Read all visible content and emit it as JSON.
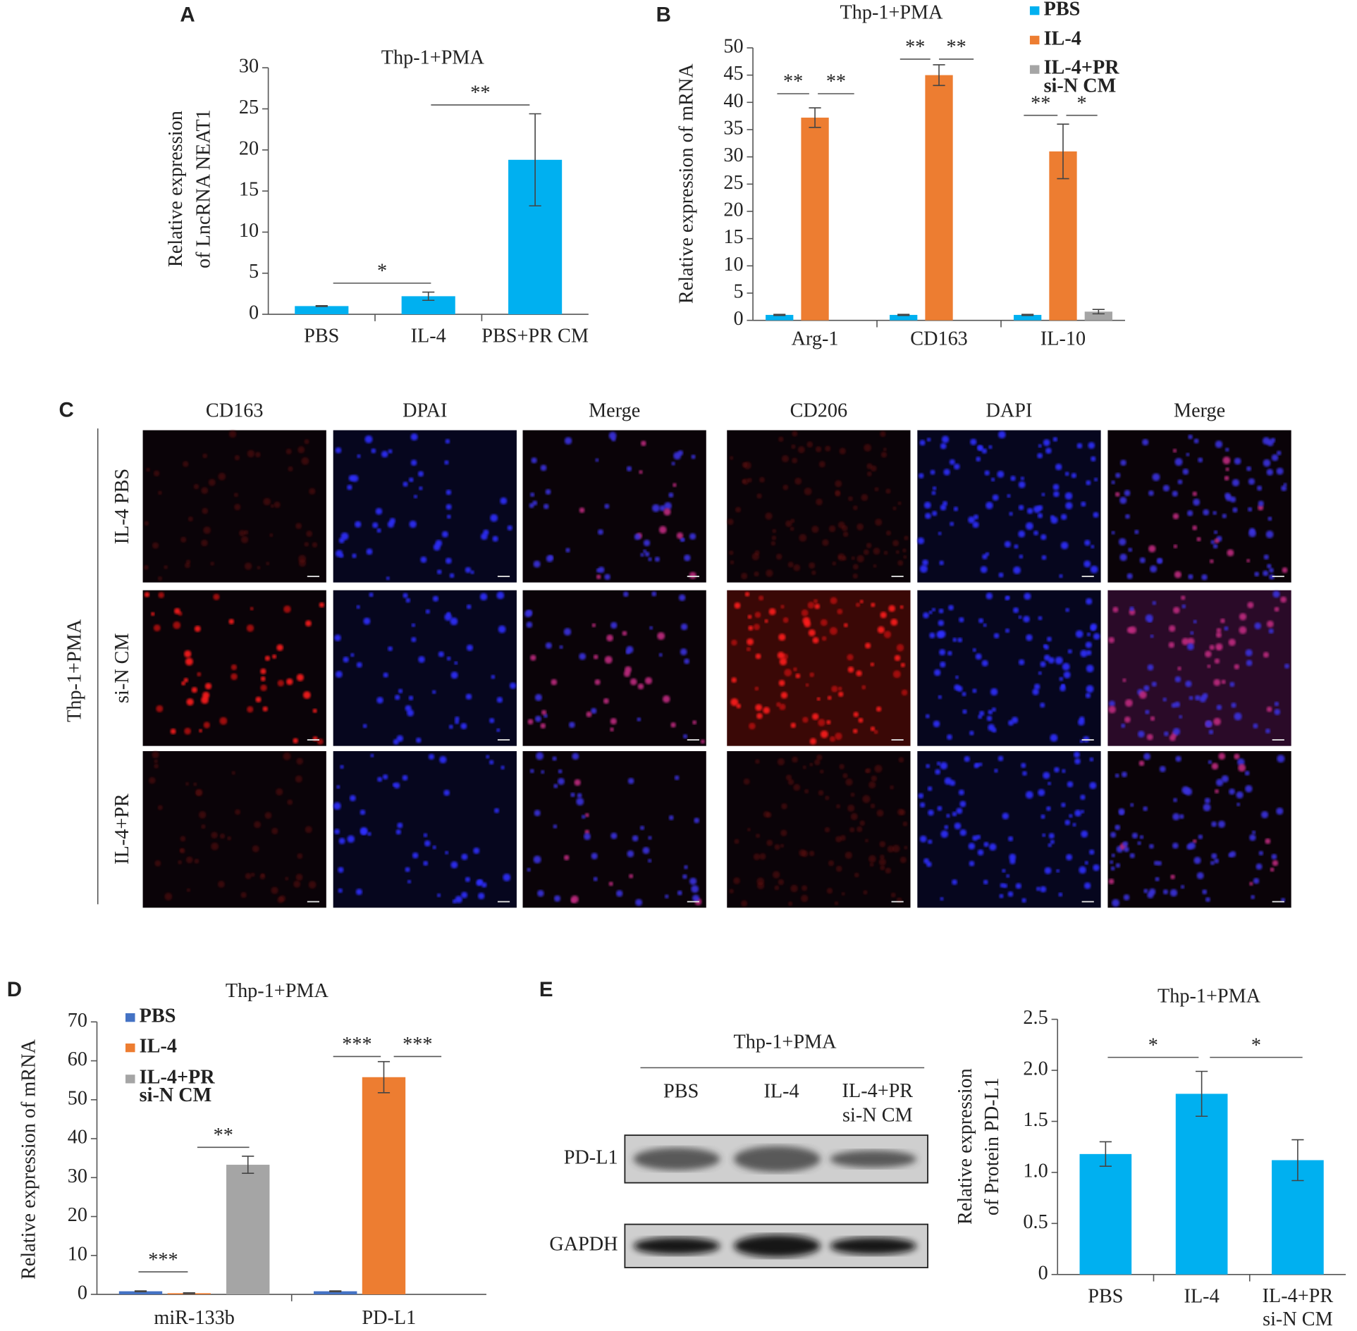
{
  "chart_data": [
    {
      "type": "bar",
      "title": "Thp-1+PMA",
      "ylabel": [
        "Relative expression",
        "of LncRNA NEAT1"
      ],
      "categories": [
        "PBS",
        "IL-4",
        "PBS+PR CM"
      ],
      "values": [
        1.0,
        2.2,
        18.8
      ],
      "errors": [
        0.05,
        0.5,
        5.6
      ],
      "color": "#00b0f0",
      "ylim": [
        0,
        30
      ],
      "yticks": [
        0,
        5,
        10,
        15,
        20,
        25,
        30
      ],
      "annotations": [
        "*",
        "**"
      ]
    },
    {
      "type": "bar",
      "title": "Thp-1+PMA",
      "ylabel": "Relative expression of mRNA",
      "categories": [
        "Arg-1",
        "CD163",
        "IL-10"
      ],
      "series": [
        {
          "name": "PBS",
          "color": "#00b0f0",
          "values": [
            1.0,
            1.0,
            1.0
          ],
          "errors": [
            0.1,
            0.1,
            0.1
          ]
        },
        {
          "name": "IL-4",
          "color": "#ed7d31",
          "values": [
            37.2,
            45.0,
            31.0
          ],
          "errors": [
            1.8,
            1.9,
            5.0
          ]
        },
        {
          "name": "IL-4+PR\nsi-N CM",
          "color": "#a5a5a5",
          "values": [
            null,
            null,
            1.6
          ],
          "errors": [
            null,
            null,
            0.4
          ]
        }
      ],
      "ylim": [
        0,
        50
      ],
      "yticks": [
        0,
        5,
        10,
        15,
        20,
        25,
        30,
        35,
        40,
        45,
        50
      ],
      "annotations": [
        "**",
        "**",
        "**",
        "**",
        "**",
        "*"
      ]
    },
    {
      "type": "bar",
      "title": "Thp-1+PMA",
      "ylabel": "Relative expression of mRNA",
      "categories": [
        "miR-133b",
        "PD-L1"
      ],
      "series": [
        {
          "name": "PBS",
          "color": "#4472c4",
          "values": [
            0.8,
            0.8
          ],
          "errors": [
            0.1,
            0.1
          ]
        },
        {
          "name": "IL-4",
          "color": "#ed7d31",
          "values": [
            0.3,
            55.8
          ],
          "errors": [
            0.1,
            4.0
          ]
        },
        {
          "name": "IL-4+PR\nsi-N CM",
          "color": "#a5a5a5",
          "values": [
            33.3,
            null
          ],
          "errors": [
            2.2,
            null
          ]
        }
      ],
      "ylim": [
        0,
        70
      ],
      "yticks": [
        0,
        10,
        20,
        30,
        40,
        50,
        60,
        70
      ],
      "annotations": [
        "***",
        "**",
        "***",
        "***"
      ]
    },
    {
      "type": "bar",
      "title": "Thp-1+PMA",
      "ylabel": [
        "Relative expression",
        "of Protein PD-L1"
      ],
      "categories": [
        "PBS",
        "IL-4",
        "IL-4+PR\nsi-N CM"
      ],
      "values": [
        1.18,
        1.77,
        1.12
      ],
      "errors": [
        0.12,
        0.22,
        0.2
      ],
      "color": "#00b0f0",
      "ylim": [
        0,
        2.5
      ],
      "yticks": [
        0,
        0.5,
        {
          "value": 1,
          "label": "1.0"
        },
        1.5,
        {
          "value": 2,
          "label": "2.0"
        },
        2.5
      ],
      "annotations": [
        "*",
        "*"
      ]
    }
  ],
  "figure": {
    "letters": [
      "A",
      "B",
      "C",
      "D",
      "E"
    ],
    "micrographs": {
      "columns": [
        "CD163",
        "DPAI",
        "Merge",
        "CD206",
        "DAPI",
        "Merge"
      ],
      "rows": [
        "IL-4 PBS",
        "si-N CM",
        "IL-4+PR"
      ],
      "group": "Thp-1+PMA"
    },
    "blot": {
      "title": "Thp-1+PMA",
      "lanes": [
        "PBS",
        "IL-4",
        "IL-4+PR\nsi-N CM"
      ],
      "rows": [
        "PD-L1",
        "GAPDH"
      ]
    }
  }
}
